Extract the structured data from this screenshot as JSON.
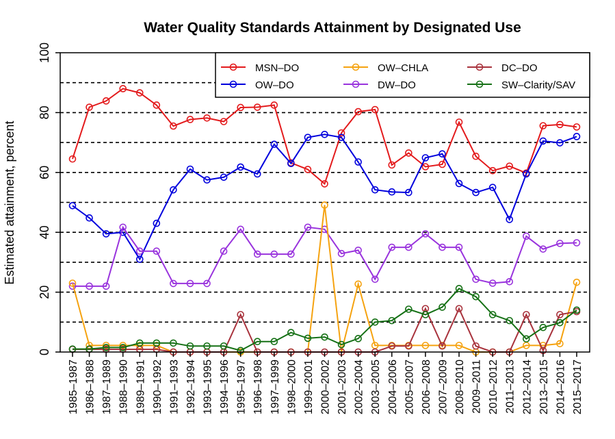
{
  "chart_data": {
    "type": "line",
    "title": "Water Quality Standards Attainment by Designated Use",
    "xlabel": "",
    "ylabel": "Estimated attainment, percent",
    "ylim": [
      0,
      100
    ],
    "yticks": [
      0,
      20,
      40,
      60,
      80,
      100
    ],
    "grid_lines_y": [
      10,
      20,
      30,
      40,
      50,
      60,
      70,
      80,
      90
    ],
    "grid": true,
    "legend_position": "top-right",
    "categories": [
      "1985–1987",
      "1986–1988",
      "1987–1989",
      "1988–1990",
      "1989–1991",
      "1990–1992",
      "1991–1993",
      "1992–1994",
      "1993–1995",
      "1994–1996",
      "1995–1997",
      "1996–1998",
      "1997–1999",
      "1998–2000",
      "1999–2001",
      "2000–2002",
      "2001–2003",
      "2002–2004",
      "2003–2005",
      "2004–2006",
      "2005–2007",
      "2006–2008",
      "2007–2009",
      "2008–2010",
      "2009–2011",
      "2010–2012",
      "2011–2013",
      "2012–2014",
      "2013–2015",
      "2014–2016",
      "2015–2017"
    ],
    "series": [
      {
        "name": "MSN–DO",
        "color": "#e31a1c",
        "values": [
          64.5,
          81.8,
          83.9,
          88.0,
          86.6,
          82.5,
          75.5,
          77.7,
          78.2,
          77.0,
          81.7,
          81.8,
          82.5,
          63.2,
          61.0,
          56.2,
          73.2,
          80.3,
          81.0,
          62.5,
          66.5,
          61.9,
          62.7,
          76.8,
          65.4,
          60.6,
          62.1,
          59.8,
          75.6,
          76.0,
          75.2
        ]
      },
      {
        "name": "OW–DO",
        "color": "#0000dd",
        "values": [
          48.9,
          44.8,
          39.5,
          40.0,
          31.0,
          43.0,
          54.2,
          61.1,
          57.5,
          58.4,
          61.8,
          59.5,
          69.4,
          63.0,
          71.7,
          72.7,
          71.7,
          63.5,
          54.2,
          53.5,
          53.3,
          64.9,
          66.2,
          56.3,
          53.3,
          55.0,
          44.3,
          59.5,
          70.5,
          69.9,
          72.0
        ]
      },
      {
        "name": "DW–DO",
        "color": "#9933dd",
        "values": [
          22.0,
          22.0,
          22.0,
          41.7,
          33.7,
          33.7,
          22.9,
          22.9,
          22.9,
          33.7,
          41.0,
          32.7,
          32.7,
          32.7,
          41.7,
          41.0,
          32.9,
          34.0,
          24.3,
          35.0,
          35.0,
          39.5,
          35.0,
          35.0,
          24.3,
          23.0,
          23.5,
          38.7,
          34.4,
          36.3,
          36.5
        ]
      },
      {
        "name": "OW–CHLA",
        "color": "#f5a20f",
        "values": [
          23.0,
          2.2,
          2.2,
          2.2,
          2.2,
          2.2,
          0,
          0,
          0,
          0,
          0,
          0,
          0,
          0,
          0,
          49.1,
          0,
          22.7,
          2.2,
          2.2,
          2.2,
          2.2,
          2.2,
          2.2,
          0,
          0,
          0,
          2.2,
          2.2,
          2.8,
          23.3
        ]
      },
      {
        "name": "DC–DO",
        "color": "#a8323c",
        "values": [
          0.9,
          0.9,
          0.9,
          0.9,
          0.9,
          0.9,
          0,
          0,
          0,
          0,
          12.5,
          0,
          0,
          0,
          0,
          0,
          0,
          0,
          0,
          2.0,
          2.0,
          14.5,
          2.0,
          14.5,
          2.0,
          0,
          0,
          12.5,
          0.5,
          12.5,
          13.5
        ]
      },
      {
        "name": "SW–Clarity/SAV",
        "color": "#157015",
        "values": [
          1.0,
          1.0,
          1.5,
          1.5,
          3.0,
          3.0,
          3.0,
          2.0,
          2.0,
          2.0,
          0.5,
          3.5,
          3.5,
          6.5,
          4.6,
          5.0,
          2.5,
          4.5,
          10.0,
          10.5,
          14.3,
          12.5,
          15.0,
          21.2,
          18.5,
          12.5,
          10.5,
          4.4,
          8.2,
          9.8,
          14.0
        ]
      }
    ]
  }
}
